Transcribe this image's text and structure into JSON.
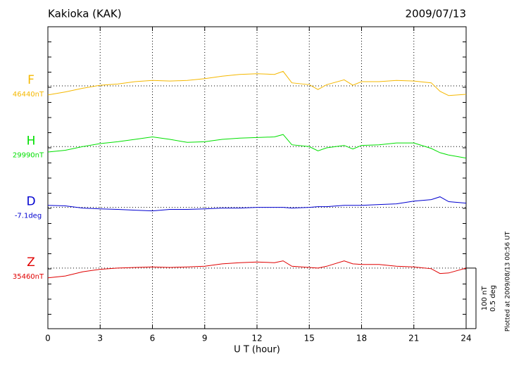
{
  "chart_data": {
    "type": "line",
    "title": "Kakioka (KAK)",
    "date": "2009/07/13",
    "x_label": "U T (hour)",
    "note": "Plotted at 2009/08/13 00:56 UT",
    "x": [
      0,
      1,
      2,
      3,
      4,
      5,
      6,
      7,
      8,
      9,
      10,
      11,
      12,
      13,
      13.5,
      14,
      15,
      15.5,
      16,
      17,
      17.5,
      18,
      19,
      20,
      21,
      22,
      22.5,
      23,
      24
    ],
    "xlim": [
      0,
      24
    ],
    "xticks": [
      0,
      3,
      6,
      9,
      12,
      15,
      18,
      21,
      24
    ],
    "grid": true,
    "scale": [
      {
        "value": 100,
        "label": "100 nT"
      },
      {
        "value": 0.5,
        "label": "0.5 deg"
      }
    ],
    "series": [
      {
        "name": "F",
        "color": "#f5b800",
        "scale": 0,
        "baseline": {
          "value": 46440,
          "label": "46440nT"
        },
        "values": [
          46425,
          46430,
          46436,
          46441,
          46443,
          46447,
          46449,
          46448,
          46449,
          46452,
          46456,
          46459,
          46460,
          46459,
          46464,
          46445,
          46442,
          46434,
          46442,
          46450,
          46441,
          46447,
          46447,
          46449,
          46448,
          46445,
          46431,
          46424,
          46426
        ]
      },
      {
        "name": "H",
        "color": "#00e000",
        "scale": 0,
        "baseline": {
          "value": 29990,
          "label": "29990nT"
        },
        "values": [
          29981,
          29984,
          29990,
          29995,
          29998,
          30002,
          30006,
          30002,
          29997,
          29998,
          30002,
          30004,
          30005,
          30006,
          30010,
          29993,
          29990,
          29983,
          29988,
          29992,
          29986,
          29992,
          29993,
          29996,
          29996,
          29987,
          29980,
          29976,
          29971
        ]
      },
      {
        "name": "D",
        "color": "#0000d0",
        "scale": 1,
        "baseline": {
          "value": -7.1,
          "label": "-7.1deg"
        },
        "values": [
          -7.083,
          -7.088,
          -7.106,
          -7.112,
          -7.117,
          -7.123,
          -7.129,
          -7.117,
          -7.117,
          -7.112,
          -7.106,
          -7.106,
          -7.1,
          -7.1,
          -7.1,
          -7.106,
          -7.1,
          -7.094,
          -7.094,
          -7.083,
          -7.083,
          -7.083,
          -7.077,
          -7.071,
          -7.048,
          -7.036,
          -7.013,
          -7.053,
          -7.065
        ]
      },
      {
        "name": "Z",
        "color": "#e00000",
        "scale": 0,
        "baseline": {
          "value": 35460,
          "label": "35460nT"
        },
        "values": [
          35444,
          35447,
          35454,
          35458,
          35460,
          35461,
          35462,
          35461,
          35462,
          35463,
          35467,
          35469,
          35470,
          35469,
          35472,
          35463,
          35461,
          35460,
          35463,
          35472,
          35467,
          35466,
          35466,
          35463,
          35462,
          35459,
          35451,
          35452,
          35460
        ]
      }
    ]
  }
}
